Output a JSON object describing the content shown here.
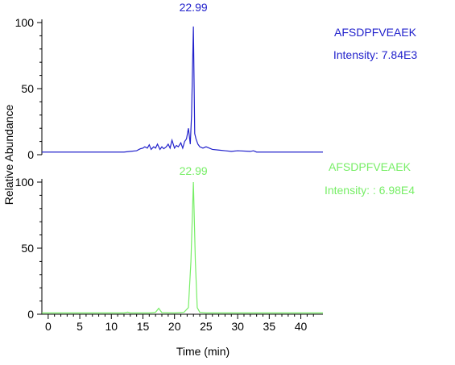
{
  "chart_data": {
    "type": "line",
    "xlabel": "Time (min)",
    "ylabel": "Relative Abundance",
    "xlim": [
      -1,
      43.5
    ],
    "x_ticks": [
      0,
      5,
      10,
      15,
      20,
      25,
      30,
      35,
      40
    ],
    "x_tick_labels": [
      "0",
      "5",
      "10",
      "15",
      "20",
      "25",
      "30",
      "35",
      "40"
    ],
    "y_ticks": [
      0,
      50,
      100
    ],
    "y_tick_labels": [
      "0",
      "50",
      "100"
    ],
    "grid": false,
    "panels": [
      {
        "name": "AFSDPFVEAEK",
        "intensity_label": "Intensity: 7.84E3",
        "color": "#2222cc",
        "peak_label": "22.99",
        "peak_time": 22.99,
        "ylim": [
          0,
          100
        ],
        "series": [
          {
            "x": [
              -1,
              12,
              13,
              14,
              14.6,
              15,
              15.3,
              15.7,
              16,
              16.3,
              16.7,
              17,
              17.3,
              17.7,
              18,
              18.3,
              18.7,
              19,
              19.3,
              19.6,
              20,
              20.3,
              20.6,
              21,
              21.3,
              21.6,
              21.9,
              22.2,
              22.5,
              22.7,
              22.99,
              23.2,
              23.4,
              23.7,
              24,
              24.5,
              25,
              26,
              27,
              28,
              29,
              30,
              32,
              32.5,
              33,
              43.5
            ],
            "y": [
              2,
              2,
              2.5,
              3,
              4.5,
              5,
              6,
              5,
              7.5,
              4,
              6,
              5,
              8,
              4,
              6,
              4.5,
              6,
              8,
              5,
              11,
              5,
              7,
              6,
              9,
              5,
              10,
              12,
              20,
              8,
              30,
              97,
              16,
              12,
              8,
              6,
              5,
              6,
              4,
              3.5,
              3,
              2.5,
              3,
              2.5,
              3,
              2,
              2
            ]
          }
        ]
      },
      {
        "name": "AFSDPFVEAEK",
        "intensity_label": "Intensity: : 6.98E4",
        "color": "#77ee66",
        "peak_label": "22.99",
        "peak_time": 22.99,
        "ylim": [
          0,
          100
        ],
        "series": [
          {
            "x": [
              -1,
              10,
              12,
              12.6,
              13,
              16,
              17,
              17.5,
              18,
              20,
              21.5,
              22.2,
              22.6,
              22.99,
              23.3,
              23.6,
              24,
              25,
              43.5
            ],
            "y": [
              1,
              1,
              1,
              1.6,
              1,
              1,
              1.5,
              4.5,
              1.2,
              1,
              1.5,
              5,
              40,
              100,
              40,
              5,
              1.5,
              1,
              1
            ]
          }
        ]
      }
    ]
  }
}
